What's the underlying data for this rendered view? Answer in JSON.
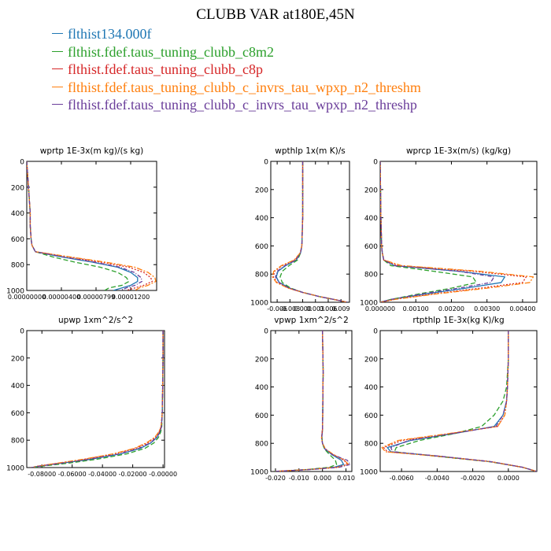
{
  "title": "CLUBB VAR at180E,45N",
  "legend": [
    {
      "label": "flthist134.000f",
      "color": "#1f77b4"
    },
    {
      "label": "flthist.fdef.taus_tuning_clubb_c8m2",
      "color": "#2ca02c"
    },
    {
      "label": "flthist.fdef.taus_tuning_clubb_c8p",
      "color": "#d62728"
    },
    {
      "label": "flthist.fdef.taus_tuning_clubb_c_invrs_tau_wpxp_n2_threshm",
      "color": "#ff7f0e"
    },
    {
      "label": "flthist.fdef.taus_tuning_clubb_c_invrs_tau_wpxp_n2_threshp",
      "color": "#6a3d9a"
    }
  ],
  "chart_data": [
    {
      "type": "line",
      "title": "wprtp  1E-3x(m kg)/(s kg)",
      "xlim": [
        0,
        1.5e-05
      ],
      "ylim": [
        1000,
        0
      ],
      "xticks": [
        0,
        4e-06,
        8e-06,
        1.2e-05
      ],
      "xtick_labels": [
        "0.00000000",
        "0.00000400",
        "0.00000799",
        "0.00001200"
      ],
      "yticks": [
        0,
        200,
        400,
        600,
        800,
        1000
      ],
      "ytick_labels": [
        "0",
        "200",
        "400",
        "600",
        "800",
        "1000"
      ],
      "y": [
        0,
        100,
        200,
        300,
        400,
        500,
        600,
        650,
        700,
        740,
        780,
        820,
        860,
        900,
        930,
        960,
        980,
        1000
      ],
      "series": [
        {
          "x": [
            0,
            1e-07,
            2e-07,
            3e-07,
            4e-07,
            4e-07,
            5e-07,
            6e-07,
            1e-06,
            4e-06,
            7.5e-06,
            1.05e-05,
            1.2e-05,
            1.28e-05,
            1.28e-05,
            1.2e-05,
            1.1e-05,
            1e-05
          ]
        },
        {
          "x": [
            0,
            1e-07,
            2e-07,
            3e-07,
            4e-07,
            4e-07,
            5e-07,
            6e-07,
            1e-06,
            3e-06,
            5.5e-06,
            8.5e-06,
            1.05e-05,
            1.15e-05,
            1.18e-05,
            1.1e-05,
            9.5e-06,
            9e-06
          ]
        },
        {
          "x": [
            0,
            1e-07,
            2e-07,
            3e-07,
            4e-07,
            4e-07,
            5e-07,
            6e-07,
            1e-06,
            4.8e-06,
            8.5e-06,
            1.18e-05,
            1.35e-05,
            1.43e-05,
            1.45e-05,
            1.35e-05,
            1.25e-05,
            1.15e-05
          ]
        },
        {
          "x": [
            0,
            1e-07,
            2e-07,
            3e-07,
            4e-07,
            4e-07,
            5e-07,
            6e-07,
            1e-06,
            5e-06,
            9e-06,
            1.25e-05,
            1.4e-05,
            1.48e-05,
            1.49e-05,
            1.4e-05,
            1.3e-05,
            1.25e-05
          ]
        },
        {
          "x": [
            0,
            1e-07,
            2e-07,
            3e-07,
            4e-07,
            4e-07,
            5e-07,
            6e-07,
            1e-06,
            4.2e-06,
            7.8e-06,
            1.08e-05,
            1.24e-05,
            1.32e-05,
            1.33e-05,
            1.25e-05,
            1.15e-05,
            1.08e-05
          ]
        }
      ]
    },
    {
      "type": "line",
      "title": "wpthlp  1x(m K)/s",
      "xlim": [
        -0.0075,
        0.011
      ],
      "ylim": [
        1000,
        0
      ],
      "xticks": [
        -0.006,
        -0.003,
        0,
        0.003,
        0.006,
        0.009
      ],
      "xtick_labels": [
        "-0.006",
        "-0.003",
        "0.000",
        "0.003",
        "0.006",
        "0.009"
      ],
      "yticks": [
        0,
        200,
        400,
        600,
        800,
        1000
      ],
      "ytick_labels": [
        "0",
        "200",
        "400",
        "600",
        "800",
        "1000"
      ],
      "y": [
        0,
        200,
        400,
        600,
        650,
        700,
        740,
        780,
        820,
        860,
        900,
        930,
        960,
        990,
        1000
      ],
      "series": [
        {
          "x": [
            0,
            0,
            0,
            -0.0002,
            -0.0005,
            -0.0015,
            -0.004,
            -0.0058,
            -0.0062,
            -0.0055,
            -0.003,
            0,
            0.004,
            0.009,
            0.0105
          ]
        },
        {
          "x": [
            0,
            0,
            0,
            -0.0002,
            -0.0005,
            -0.0012,
            -0.0032,
            -0.0048,
            -0.0053,
            -0.0048,
            -0.0028,
            0,
            0.004,
            0.009,
            0.0105
          ]
        },
        {
          "x": [
            0,
            0,
            0,
            -0.0002,
            -0.0006,
            -0.0018,
            -0.0048,
            -0.0066,
            -0.0069,
            -0.006,
            -0.0033,
            0,
            0.004,
            0.009,
            0.0105
          ]
        },
        {
          "x": [
            0,
            0,
            0,
            -0.0002,
            -0.0006,
            -0.002,
            -0.005,
            -0.0068,
            -0.0071,
            -0.0062,
            -0.0034,
            0,
            0.004,
            0.009,
            0.0105
          ]
        },
        {
          "x": [
            0,
            0,
            0,
            -0.0002,
            -0.0005,
            -0.0016,
            -0.0042,
            -0.006,
            -0.0064,
            -0.0056,
            -0.0031,
            0,
            0.004,
            0.009,
            0.0105
          ]
        }
      ]
    },
    {
      "type": "line",
      "title": "wprcp  1E-3x(m/s) (kg/kg)",
      "xlim": [
        0,
        0.0044
      ],
      "ylim": [
        1000,
        0
      ],
      "xticks": [
        0,
        0.001,
        0.002,
        0.003,
        0.004
      ],
      "xtick_labels": [
        "0.000000",
        "0.00100",
        "0.00200",
        "0.00300",
        "0.00400"
      ],
      "yticks": [
        0,
        200,
        400,
        600,
        800,
        1000
      ],
      "ytick_labels": [
        "0",
        "200",
        "400",
        "600",
        "800",
        "1000"
      ],
      "y": [
        0,
        200,
        400,
        500,
        600,
        650,
        700,
        740,
        780,
        820,
        860,
        900,
        940,
        980,
        1000
      ],
      "series": [
        {
          "x": [
            0,
            1e-05,
            2e-05,
            3e-05,
            4e-05,
            6e-05,
            0.0001,
            0.0004,
            0.0022,
            0.0035,
            0.0034,
            0.0024,
            0.0013,
            0.0003,
            0
          ]
        },
        {
          "x": [
            0,
            1e-05,
            2e-05,
            3e-05,
            4e-05,
            6e-05,
            0.0001,
            0.0003,
            0.0015,
            0.0026,
            0.0027,
            0.002,
            0.0011,
            0.0003,
            0
          ]
        },
        {
          "x": [
            0,
            1e-05,
            2e-05,
            3e-05,
            4e-05,
            6e-05,
            0.0001,
            0.0005,
            0.0026,
            0.0041,
            0.004,
            0.0028,
            0.0015,
            0.0004,
            0
          ]
        },
        {
          "x": [
            0,
            1e-05,
            2e-05,
            3e-05,
            4e-05,
            6e-05,
            0.0001,
            0.0006,
            0.0028,
            0.0043,
            0.0042,
            0.003,
            0.0016,
            0.0004,
            0
          ]
        },
        {
          "x": [
            0,
            1e-05,
            2e-05,
            3e-05,
            4e-05,
            6e-05,
            0.0001,
            0.0004,
            0.0022,
            0.0032,
            0.0031,
            0.0022,
            0.0012,
            0.0003,
            0
          ]
        }
      ]
    },
    {
      "type": "line",
      "title": "upwp  1xm^2/s^2",
      "xlim": [
        -0.09,
        0.001
      ],
      "ylim": [
        1000,
        0
      ],
      "xticks": [
        -0.08,
        -0.06,
        -0.04,
        -0.02,
        0
      ],
      "xtick_labels": [
        "-0.08000",
        "-0.06000",
        "-0.04000",
        "-0.02000",
        "-0.00000"
      ],
      "yticks": [
        0,
        200,
        400,
        600,
        800,
        1000
      ],
      "ytick_labels": [
        "0",
        "200",
        "400",
        "600",
        "800",
        "1000"
      ],
      "y": [
        0,
        200,
        400,
        600,
        700,
        740,
        780,
        820,
        860,
        900,
        940,
        970,
        990,
        1000
      ],
      "series": [
        {
          "x": [
            0,
            0,
            -0.0002,
            -0.0005,
            -0.001,
            -0.002,
            -0.004,
            -0.008,
            -0.015,
            -0.028,
            -0.048,
            -0.068,
            -0.082,
            -0.087
          ]
        },
        {
          "x": [
            0,
            0,
            -0.0002,
            -0.0005,
            -0.0008,
            -0.0015,
            -0.003,
            -0.006,
            -0.012,
            -0.024,
            -0.044,
            -0.064,
            -0.08,
            -0.086
          ]
        },
        {
          "x": [
            0,
            0,
            -0.0002,
            -0.0005,
            -0.0012,
            -0.0025,
            -0.005,
            -0.01,
            -0.018,
            -0.032,
            -0.052,
            -0.07,
            -0.083,
            -0.087
          ]
        },
        {
          "x": [
            0,
            0,
            -0.0002,
            -0.0005,
            -0.0013,
            -0.0028,
            -0.0055,
            -0.011,
            -0.019,
            -0.033,
            -0.053,
            -0.071,
            -0.083,
            -0.087
          ]
        },
        {
          "x": [
            0,
            0,
            -0.0002,
            -0.0005,
            -0.001,
            -0.002,
            -0.0042,
            -0.0085,
            -0.016,
            -0.029,
            -0.049,
            -0.068,
            -0.082,
            -0.087
          ]
        }
      ]
    },
    {
      "type": "line",
      "title": "vpwp  1xm^2/s^2",
      "xlim": [
        -0.022,
        0.0125
      ],
      "ylim": [
        1000,
        0
      ],
      "xticks": [
        -0.02,
        -0.01,
        0,
        0.01
      ],
      "xtick_labels": [
        "-0.020",
        "-0.010",
        "0.000",
        "0.010"
      ],
      "yticks": [
        0,
        200,
        400,
        600,
        800,
        1000
      ],
      "ytick_labels": [
        "0",
        "200",
        "400",
        "600",
        "800",
        "1000"
      ],
      "y": [
        0,
        200,
        300,
        400,
        600,
        700,
        760,
        800,
        840,
        880,
        920,
        950,
        970,
        985,
        1000
      ],
      "series": [
        {
          "x": [
            0,
            0.0002,
            0.0003,
            0.0002,
            0.0001,
            0,
            -0.0003,
            0,
            0.001,
            0.004,
            0.008,
            0.009,
            0.005,
            -0.005,
            -0.021
          ]
        },
        {
          "x": [
            0,
            0.0002,
            0.0003,
            0.0002,
            0.0001,
            0,
            -0.0002,
            0,
            0.0008,
            0.003,
            0.0055,
            0.006,
            0.003,
            -0.006,
            -0.021
          ]
        },
        {
          "x": [
            0,
            0.0002,
            0.0003,
            0.0002,
            0.0001,
            0,
            -0.0004,
            0,
            0.0012,
            0.0045,
            0.0092,
            0.0105,
            0.006,
            -0.005,
            -0.021
          ]
        },
        {
          "x": [
            0,
            0.0002,
            0.0003,
            0.0002,
            0.0001,
            0,
            -0.0004,
            0,
            0.0013,
            0.0047,
            0.0095,
            0.011,
            0.0065,
            -0.005,
            -0.021
          ]
        },
        {
          "x": [
            0,
            0.0002,
            0.0003,
            0.0002,
            0.0001,
            0,
            -0.0003,
            0,
            0.0011,
            0.0042,
            0.0105,
            0.0118,
            0.007,
            -0.004,
            -0.021
          ]
        }
      ]
    },
    {
      "type": "line",
      "title": "rtpthlp  1E-3x(kg K)/kg",
      "xlim": [
        -0.0072,
        0.0016
      ],
      "ylim": [
        1000,
        0
      ],
      "xticks": [
        -0.006,
        -0.004,
        -0.002,
        0
      ],
      "xtick_labels": [
        "-0.0060",
        "-0.0040",
        "-0.0020",
        "0.0000"
      ],
      "yticks": [
        0,
        200,
        400,
        600,
        800,
        1000
      ],
      "ytick_labels": [
        "0",
        "200",
        "400",
        "600",
        "800",
        "1000"
      ],
      "y": [
        0,
        200,
        400,
        500,
        600,
        680,
        730,
        780,
        830,
        860,
        890,
        930,
        970,
        1000
      ],
      "series": [
        {
          "x": [
            0,
            0,
            -5e-05,
            -0.0001,
            -0.0003,
            -0.0008,
            -0.003,
            -0.0055,
            -0.0068,
            -0.0066,
            -0.004,
            -0.001,
            0.0008,
            0.0016
          ]
        },
        {
          "x": [
            0,
            0,
            -0.0001,
            -0.0003,
            -0.0008,
            -0.0015,
            -0.003,
            -0.005,
            -0.0063,
            -0.0064,
            -0.0042,
            -0.0011,
            0.0008,
            0.0016
          ]
        },
        {
          "x": [
            0,
            0,
            -5e-05,
            -0.0001,
            -0.0002,
            -0.0006,
            -0.0032,
            -0.006,
            -0.007,
            -0.0068,
            -0.004,
            -0.001,
            0.0008,
            0.0016
          ]
        },
        {
          "x": [
            0,
            0,
            -5e-05,
            -0.0001,
            -0.0002,
            -0.0006,
            -0.0033,
            -0.0062,
            -0.0071,
            -0.0069,
            -0.0041,
            -0.001,
            0.0008,
            0.0016
          ]
        },
        {
          "x": [
            0,
            0,
            -5e-05,
            -0.0001,
            -0.0003,
            -0.0007,
            -0.0031,
            -0.0056,
            -0.0066,
            -0.0065,
            -0.004,
            -0.001,
            0.0008,
            0.0016
          ]
        }
      ]
    }
  ]
}
